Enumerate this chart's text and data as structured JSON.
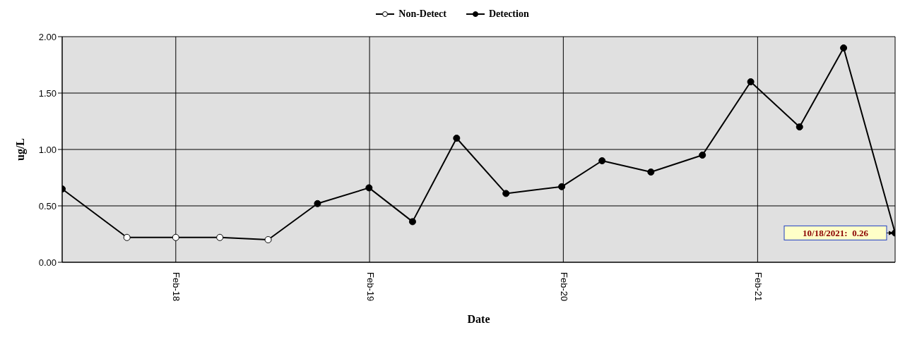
{
  "chart_data": {
    "type": "line",
    "xlabel": "Date",
    "ylabel": "ug/L",
    "x": [
      "2017-07-02",
      "2017-11-01",
      "2018-02-01",
      "2018-04-25",
      "2018-07-25",
      "2018-10-26",
      "2019-01-31",
      "2019-04-23",
      "2019-07-15",
      "2019-10-16",
      "2020-01-29",
      "2020-04-14",
      "2020-07-15",
      "2020-10-20",
      "2021-01-19",
      "2021-04-21",
      "2021-07-13",
      "2021-10-18"
    ],
    "series": [
      {
        "type": "line",
        "color": "#000000",
        "marker": "none",
        "values": [
          0.65,
          0.22,
          0.22,
          0.22,
          0.2,
          0.52,
          0.66,
          0.36,
          1.1,
          0.61,
          0.67,
          0.9,
          0.8,
          0.95,
          1.6,
          1.2,
          1.9,
          0.26
        ]
      },
      {
        "type": "scatter",
        "name": "Non-Detect",
        "color": "#ffffff",
        "marker": "circle",
        "values": [
          null,
          0.22,
          0.22,
          0.22,
          0.2,
          null,
          null,
          null,
          null,
          null,
          null,
          null,
          null,
          null,
          null,
          null,
          null,
          null
        ]
      },
      {
        "type": "scatter",
        "name": "Detection",
        "color": "#000000",
        "marker": "circle",
        "values": [
          0.65,
          null,
          null,
          null,
          null,
          0.52,
          0.66,
          0.36,
          1.1,
          0.61,
          0.67,
          0.9,
          0.8,
          0.95,
          1.6,
          1.2,
          1.9,
          0.26
        ]
      }
    ],
    "xlim": [
      "2017-07-02",
      "2021-10-18"
    ],
    "xticks": [
      {
        "value": "2018-02-01",
        "label": "Feb-18"
      },
      {
        "value": "2019-02-01",
        "label": "Feb-19"
      },
      {
        "value": "2020-02-01",
        "label": "Feb-20"
      },
      {
        "value": "2021-02-01",
        "label": "Feb-21"
      }
    ],
    "ylim": [
      0,
      2
    ],
    "yticks": [
      {
        "value": 0,
        "label": "0.00"
      },
      {
        "value": 0.5,
        "label": "0.50"
      },
      {
        "value": 1,
        "label": "1.00"
      },
      {
        "value": 1.5,
        "label": "1.50"
      },
      {
        "value": 2,
        "label": "2.00"
      }
    ],
    "grid": true,
    "legend": "top",
    "annotations": [
      {
        "text": "10/18/2021:  0.26",
        "x": "2021-10-18",
        "y": 0.26
      }
    ]
  }
}
